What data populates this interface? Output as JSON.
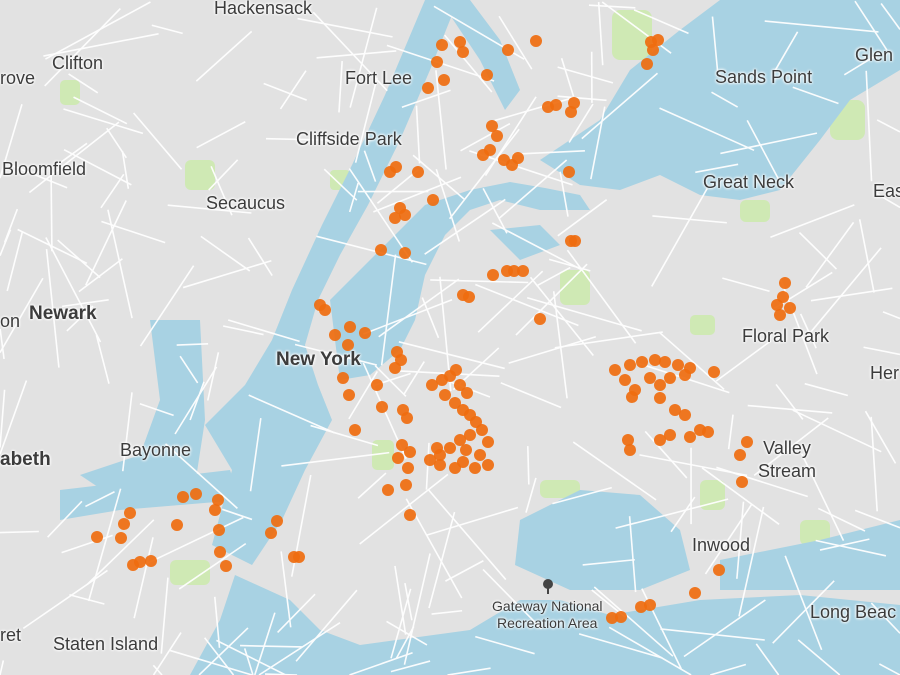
{
  "map": {
    "colors": {
      "land": "#e2e2e2",
      "water": "#a8d2e3",
      "park": "#cfe9b4",
      "road": "#ffffff",
      "marker": "#ef6c0f"
    },
    "labels": [
      {
        "id": "hackensack",
        "text": "Hackensack"
      },
      {
        "id": "clifton",
        "text": "Clifton"
      },
      {
        "id": "grove",
        "text": "rove"
      },
      {
        "id": "fort-lee",
        "text": "Fort Lee"
      },
      {
        "id": "sands-point",
        "text": "Sands Point"
      },
      {
        "id": "glen",
        "text": "Glen"
      },
      {
        "id": "cliffside-park",
        "text": "Cliffside Park"
      },
      {
        "id": "bloomfield",
        "text": "Bloomfield"
      },
      {
        "id": "great-neck",
        "text": "Great Neck"
      },
      {
        "id": "eas",
        "text": "Eas"
      },
      {
        "id": "secaucus",
        "text": "Secaucus"
      },
      {
        "id": "newark",
        "text": "Newark"
      },
      {
        "id": "on",
        "text": "on"
      },
      {
        "id": "floral-park",
        "text": "Floral Park"
      },
      {
        "id": "new-york",
        "text": "New York"
      },
      {
        "id": "her",
        "text": "Her"
      },
      {
        "id": "bayonne",
        "text": "Bayonne"
      },
      {
        "id": "valley-stream",
        "text": "Valley\nStream"
      },
      {
        "id": "abeth",
        "text": "abeth"
      },
      {
        "id": "inwood",
        "text": "Inwood"
      },
      {
        "id": "gateway",
        "text": "Gateway National\nRecreation Area"
      },
      {
        "id": "long-beach",
        "text": "Long Beac"
      },
      {
        "id": "staten-island",
        "text": "Staten Island"
      },
      {
        "id": "ret",
        "text": "ret"
      }
    ],
    "poi_icon": "tree-icon"
  }
}
